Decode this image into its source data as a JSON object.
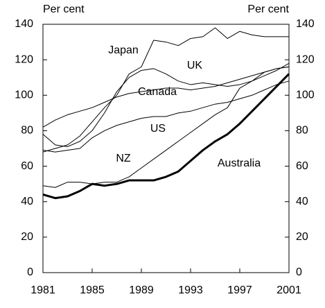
{
  "chart_data": {
    "type": "line",
    "y_label": "Per cent",
    "y2_label": "Per cent",
    "x": [
      1981,
      1982,
      1983,
      1984,
      1985,
      1986,
      1987,
      1988,
      1989,
      1990,
      1991,
      1992,
      1993,
      1994,
      1995,
      1996,
      1997,
      1998,
      1999,
      2000,
      2001
    ],
    "xlim": [
      1981,
      2001
    ],
    "xticks": [
      1981,
      1985,
      1989,
      1993,
      1997,
      2001
    ],
    "ylim": [
      0,
      140
    ],
    "yticks": [
      0,
      20,
      40,
      60,
      80,
      100,
      120,
      140
    ],
    "y2lim": [
      0,
      140
    ],
    "y2ticks": [
      0,
      20,
      40,
      60,
      80,
      100,
      120,
      140
    ],
    "series": [
      {
        "name": "Japan",
        "color": "#000000",
        "values": [
          68,
          70,
          72,
          77,
          85,
          93,
          100,
          112,
          116,
          131,
          130,
          128,
          132,
          133,
          138,
          132,
          136,
          134,
          133,
          133,
          133
        ]
      },
      {
        "name": "UK",
        "color": "#000000",
        "values": [
          78,
          72,
          71,
          74,
          80,
          90,
          102,
          110,
          114,
          115,
          112,
          108,
          106,
          107,
          106,
          105,
          106,
          108,
          111,
          114,
          118
        ]
      },
      {
        "name": "Canada",
        "color": "#000000",
        "values": [
          82,
          86,
          89,
          91,
          93,
          96,
          99,
          101,
          102,
          103,
          104,
          104,
          103,
          104,
          105,
          107,
          109,
          111,
          113,
          115,
          116
        ]
      },
      {
        "name": "US",
        "color": "#000000",
        "values": [
          69,
          68,
          69,
          70,
          76,
          80,
          83,
          85,
          87,
          88,
          88,
          90,
          91,
          93,
          95,
          96,
          98,
          100,
          103,
          106,
          108
        ]
      },
      {
        "name": "NZ",
        "color": "#000000",
        "values": [
          49,
          48,
          51,
          51,
          50,
          51,
          51,
          54,
          59,
          64,
          69,
          74,
          79,
          84,
          89,
          93,
          104,
          108,
          113,
          115,
          116
        ]
      },
      {
        "name": "Australia",
        "color": "#000000",
        "values": [
          44,
          42,
          43,
          46,
          50,
          49,
          50,
          52,
          52,
          52,
          54,
          57,
          63,
          69,
          74,
          78,
          84,
          91,
          98,
          105,
          112
        ]
      }
    ]
  }
}
